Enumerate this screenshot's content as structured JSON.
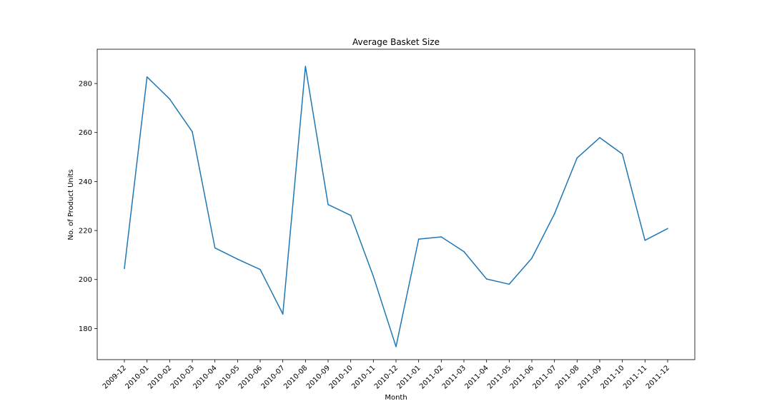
{
  "chart_data": {
    "type": "line",
    "title": "Average Basket Size",
    "xlabel": "Month",
    "ylabel": "No. of Product Units",
    "categories": [
      "2009-12",
      "2010-01",
      "2010-02",
      "2010-03",
      "2010-04",
      "2010-05",
      "2010-06",
      "2010-07",
      "2010-08",
      "2010-09",
      "2010-10",
      "2010-11",
      "2010-12",
      "2011-01",
      "2011-02",
      "2011-03",
      "2011-04",
      "2011-05",
      "2011-06",
      "2011-07",
      "2011-08",
      "2011-09",
      "2011-10",
      "2011-11",
      "2011-12"
    ],
    "series": [
      {
        "values": [
          204.5,
          282.7,
          273.7,
          260.3,
          212.9,
          208.3,
          204.1,
          185.9,
          287.0,
          230.6,
          226.2,
          201.3,
          172.6,
          216.5,
          217.4,
          211.4,
          200.2,
          198.1,
          208.7,
          226.8,
          249.6,
          257.9,
          251.2,
          216.0,
          220.8
        ]
      }
    ],
    "yticks": [
      180,
      200,
      220,
      240,
      260,
      280
    ],
    "ylim": [
      167.3,
      294.0
    ],
    "grid": false,
    "legend": "none",
    "line_color": "#1f77b4"
  }
}
